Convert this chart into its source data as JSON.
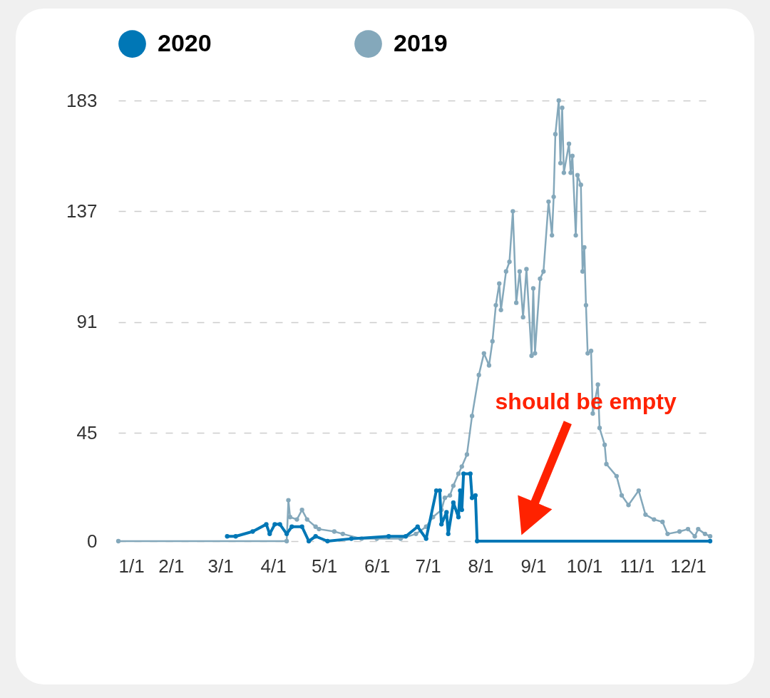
{
  "chart_data": {
    "type": "line",
    "legend": "top",
    "grid": "y",
    "marker": "circle",
    "line_style": "solid",
    "xlim": [
      "--01-01",
      "--12-14"
    ],
    "xticks": [
      {
        "value": "--01-01",
        "label": "1/1"
      },
      {
        "value": "--02-01",
        "label": "2/1"
      },
      {
        "value": "--03-01",
        "label": "3/1"
      },
      {
        "value": "--04-01",
        "label": "4/1"
      },
      {
        "value": "--05-01",
        "label": "5/1"
      },
      {
        "value": "--06-01",
        "label": "6/1"
      },
      {
        "value": "--07-01",
        "label": "7/1"
      },
      {
        "value": "--08-01",
        "label": "8/1"
      },
      {
        "value": "--09-01",
        "label": "9/1"
      },
      {
        "value": "--10-01",
        "label": "10/1"
      },
      {
        "value": "--11-01",
        "label": "11/1"
      },
      {
        "value": "--12-01",
        "label": "12/1"
      }
    ],
    "ylim": [
      0,
      183
    ],
    "yticks": [
      0,
      45,
      91,
      137,
      183
    ],
    "annotations": [
      "should be empty"
    ],
    "series": [
      {
        "name": "2020",
        "color": "#0077b6",
        "x": [
          "--03-05",
          "--03-10",
          "--03-20",
          "--03-28",
          "--03-30",
          "--04-02",
          "--04-05",
          "--04-09",
          "--04-12",
          "--04-18",
          "--04-22",
          "--04-26",
          "--05-03",
          "--05-17",
          "--06-08",
          "--06-18",
          "--06-25",
          "--06-30",
          "--07-06",
          "--07-08",
          "--07-09",
          "--07-12",
          "--07-13",
          "--07-16",
          "--07-19",
          "--07-20",
          "--07-21",
          "--07-22",
          "--07-26",
          "--07-27",
          "--07-29",
          "--07-30",
          "--12-14"
        ],
        "values": [
          2,
          2,
          4,
          7,
          3,
          7,
          7,
          3,
          6,
          6,
          0,
          2,
          0,
          1,
          2,
          2,
          6,
          1,
          21,
          21,
          7,
          12,
          3,
          16,
          10,
          21,
          13,
          28,
          28,
          18,
          19,
          0,
          0
        ]
      },
      {
        "name": "2019",
        "color": "#84a8bb",
        "x": [
          "--01-01",
          "--04-09",
          "--04-10",
          "--04-11",
          "--04-15",
          "--04-18",
          "--04-21",
          "--04-26",
          "--04-28",
          "--05-07",
          "--05-12",
          "--05-23",
          "--06-01",
          "--06-15",
          "--06-24",
          "--06-30",
          "--07-04",
          "--07-09",
          "--07-11",
          "--07-14",
          "--07-16",
          "--07-19",
          "--07-21",
          "--07-24",
          "--07-27",
          "--07-31",
          "--08-03",
          "--08-06",
          "--08-08",
          "--08-10",
          "--08-12",
          "--08-13",
          "--08-16",
          "--08-18",
          "--08-20",
          "--08-22",
          "--08-24",
          "--08-26",
          "--08-28",
          "--08-31",
          "--09-01",
          "--09-02",
          "--09-05",
          "--09-07",
          "--09-10",
          "--09-12",
          "--09-13",
          "--09-14",
          "--09-16",
          "--09-17",
          "--09-18",
          "--09-19",
          "--09-22",
          "--09-23",
          "--09-24",
          "--09-26",
          "--09-27",
          "--09-29",
          "--09-30",
          "--10-01",
          "--10-02",
          "--10-03",
          "--10-05",
          "--10-06",
          "--10-09",
          "--10-10",
          "--10-13",
          "--10-14",
          "--10-20",
          "--10-23",
          "--10-27",
          "--11-02",
          "--11-06",
          "--11-11",
          "--11-16",
          "--11-19",
          "--11-26",
          "--12-01",
          "--12-05",
          "--12-07",
          "--12-11",
          "--12-14"
        ],
        "values": [
          0,
          0,
          17,
          10,
          9,
          13,
          9,
          6,
          5,
          4,
          3,
          1,
          1,
          1,
          3,
          6,
          10,
          13,
          18,
          19,
          23,
          28,
          31,
          36,
          52,
          69,
          78,
          73,
          83,
          98,
          107,
          96,
          112,
          116,
          137,
          99,
          112,
          93,
          113,
          77,
          105,
          78,
          109,
          112,
          141,
          127,
          143,
          169,
          183,
          157,
          180,
          153,
          165,
          153,
          160,
          127,
          152,
          148,
          112,
          122,
          98,
          78,
          79,
          53,
          65,
          47,
          40,
          32,
          27,
          19,
          15,
          21,
          11,
          9,
          8,
          3,
          4,
          5,
          2,
          5,
          3,
          2
        ]
      }
    ]
  }
}
